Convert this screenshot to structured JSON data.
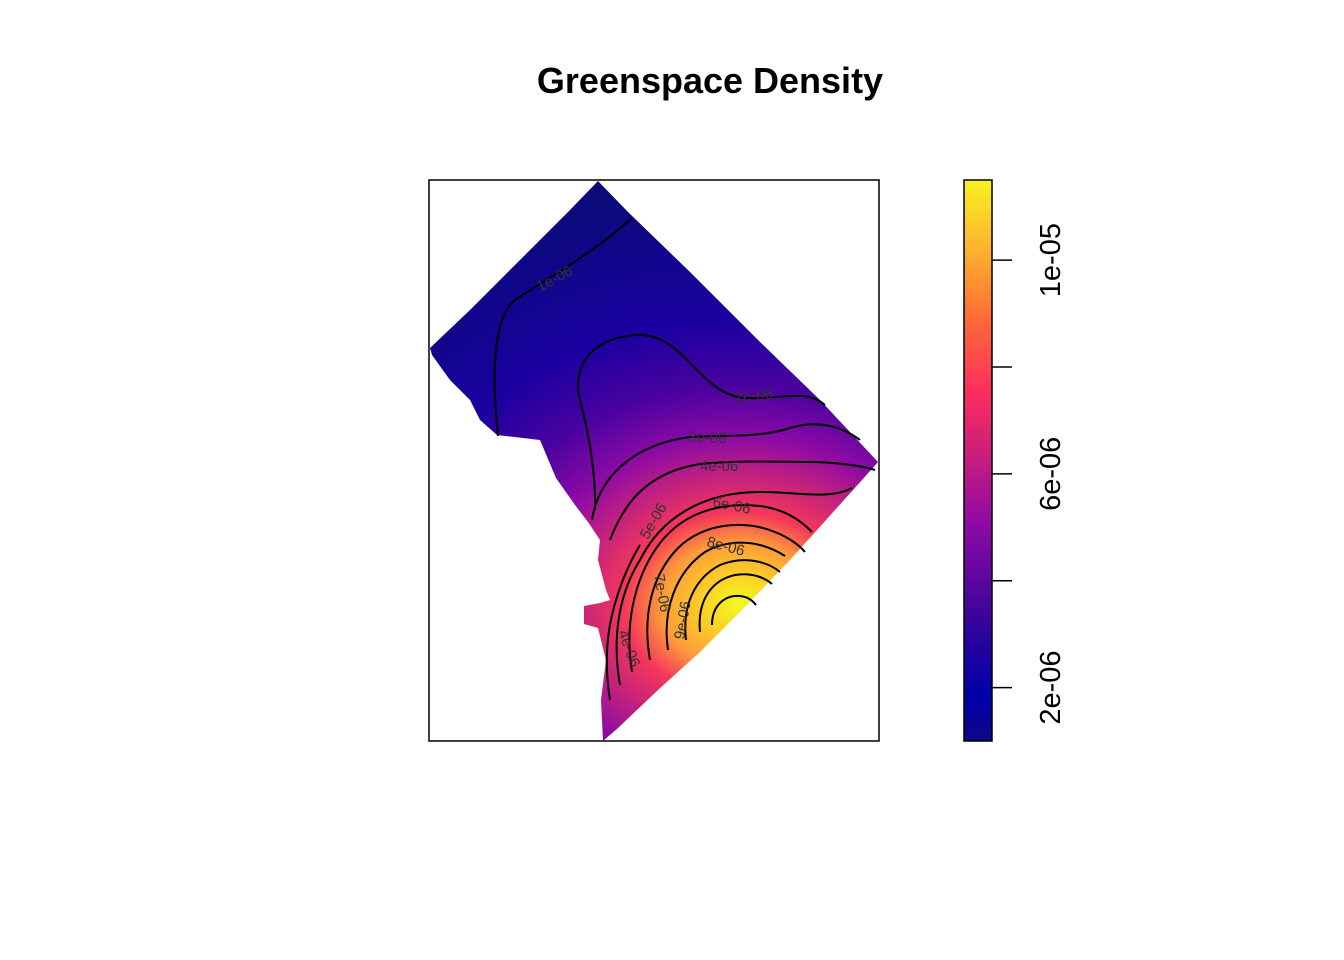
{
  "chart_data": {
    "type": "heatmap",
    "title": "Greenspace Density",
    "xlabel": "",
    "ylabel": "",
    "axes_shown": false,
    "grid": false,
    "colormap": "plasma",
    "legend": {
      "type": "colorbar",
      "placement": "right",
      "range": [
        1e-06,
        1.15e-05
      ],
      "ticks": [
        {
          "value": 2e-06,
          "label": "2e-06"
        },
        {
          "value": 4e-06,
          "label": ""
        },
        {
          "value": 6e-06,
          "label": "6e-06"
        },
        {
          "value": 8e-06,
          "label": ""
        },
        {
          "value": 1e-05,
          "label": "1e-05"
        }
      ],
      "colors": [
        "#0d0887",
        "#0000aa",
        "#5a00a5",
        "#9c179e",
        "#cf3070",
        "#fb2d5f",
        "#fd6a35",
        "#fdb42f",
        "#f0f921"
      ]
    },
    "density_peak": {
      "value": 1.15e-05,
      "location": "southeast"
    },
    "contours": [
      {
        "value": 1e-06,
        "label": "1e-06"
      },
      {
        "value": 2e-06,
        "label": "2e-06"
      },
      {
        "value": 3e-06,
        "label": "3e-06"
      },
      {
        "value": 4e-06,
        "label": "4e-06"
      },
      {
        "value": 5e-06,
        "label": "5e-06"
      },
      {
        "value": 6e-06,
        "label": "6e-06"
      },
      {
        "value": 7e-06,
        "label": "7e-06"
      },
      {
        "value": 8e-06,
        "label": "8e-06"
      },
      {
        "value": 9e-06,
        "label": "9e-06"
      },
      {
        "value": 1e-05,
        "label": ""
      },
      {
        "value": 1.1e-05,
        "label": ""
      }
    ]
  }
}
